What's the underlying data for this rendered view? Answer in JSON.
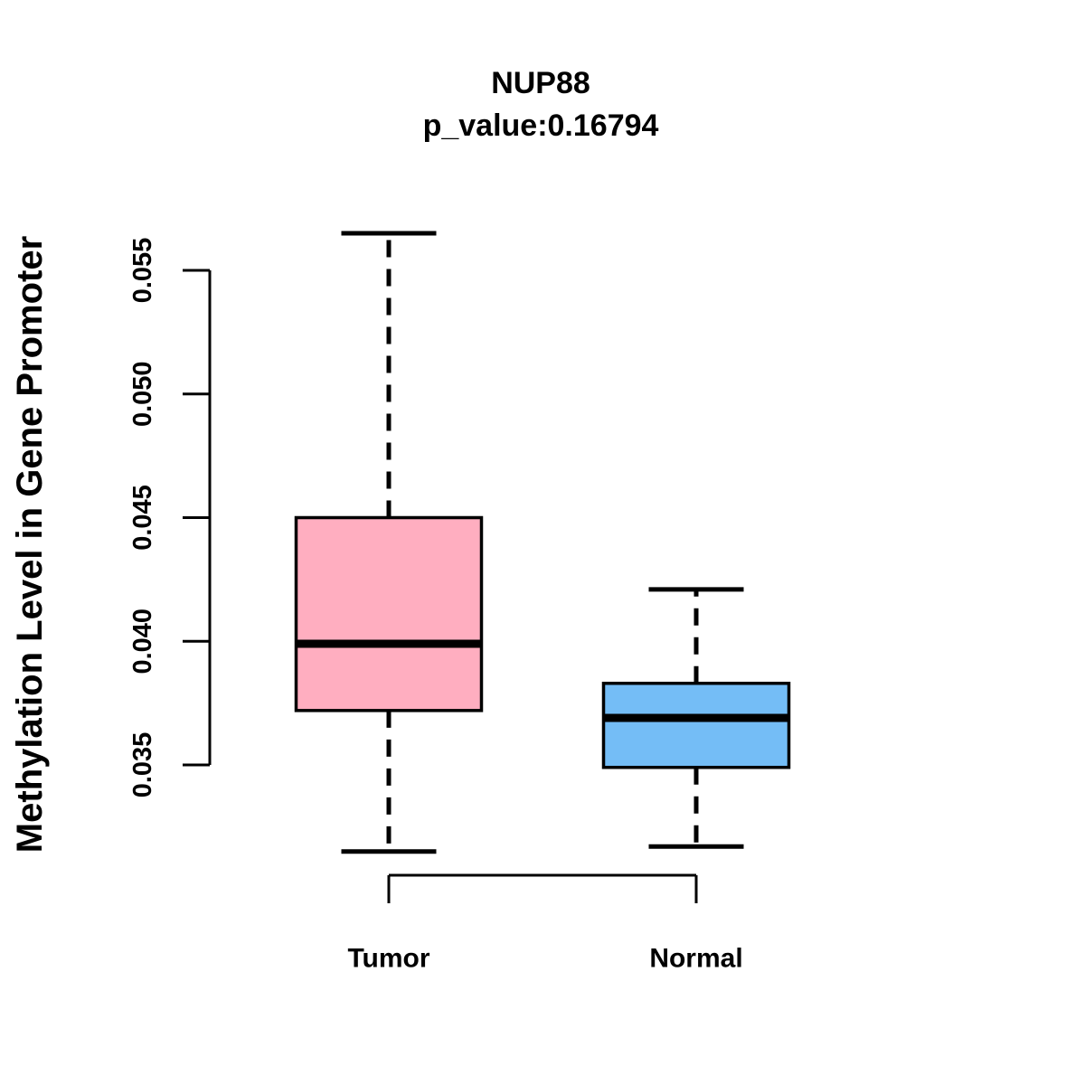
{
  "chart_data": {
    "type": "boxplot",
    "title": "NUP88",
    "subtitle": "p_value:0.16794",
    "p_value": "0.16794",
    "gene": "NUP88",
    "ylabel": "Methylation Level in Gene Promoter",
    "xlabel": "",
    "categories": [
      "Tumor",
      "Normal"
    ],
    "y_ticks": [
      0.035,
      0.04,
      0.045,
      0.05,
      0.055
    ],
    "ylim": [
      0.0305,
      0.0575
    ],
    "grid": false,
    "legend": "none",
    "series": [
      {
        "name": "Tumor",
        "color": "#FFAEC0",
        "whisker_low": 0.0315,
        "q1": 0.0372,
        "median": 0.0399,
        "q3": 0.045,
        "whisker_high": 0.0565
      },
      {
        "name": "Normal",
        "color": "#74BDF6",
        "whisker_low": 0.0317,
        "q1": 0.0349,
        "median": 0.0369,
        "q3": 0.0383,
        "whisker_high": 0.0421
      }
    ],
    "style": {
      "box_border_color": "#000000",
      "median_color": "#000000",
      "whisker_style": "dashed",
      "background": "#ffffff"
    }
  }
}
